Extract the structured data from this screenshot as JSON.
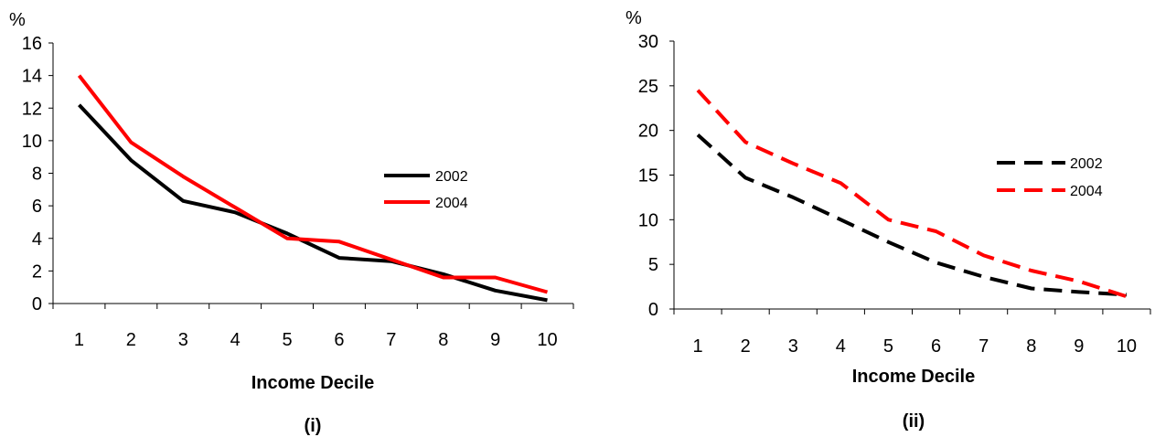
{
  "chart_data": [
    {
      "type": "line",
      "caption": "(i)",
      "ylabel": "%",
      "xlabel": "Income Decile",
      "categories": [
        "1",
        "2",
        "3",
        "4",
        "5",
        "6",
        "7",
        "8",
        "9",
        "10"
      ],
      "ylim": [
        0,
        16
      ],
      "yticks": [
        0,
        2,
        4,
        6,
        8,
        10,
        12,
        14,
        16
      ],
      "line_style": "solid",
      "legend_position": "right",
      "series": [
        {
          "name": "2002",
          "color": "#000000",
          "values": [
            12.2,
            8.8,
            6.3,
            5.6,
            4.3,
            2.8,
            2.6,
            1.8,
            0.8,
            0.2
          ]
        },
        {
          "name": "2004",
          "color": "#ff0000",
          "values": [
            14.0,
            9.9,
            7.8,
            5.9,
            4.0,
            3.8,
            2.7,
            1.6,
            1.6,
            0.7
          ]
        }
      ]
    },
    {
      "type": "line",
      "caption": "(ii)",
      "ylabel": "%",
      "xlabel": "Income Decile",
      "categories": [
        "1",
        "2",
        "3",
        "4",
        "5",
        "6",
        "7",
        "8",
        "9",
        "10"
      ],
      "ylim": [
        0,
        30
      ],
      "yticks": [
        0,
        5,
        10,
        15,
        20,
        25,
        30
      ],
      "line_style": "dashed",
      "legend_position": "right",
      "series": [
        {
          "name": "2002",
          "color": "#000000",
          "values": [
            19.5,
            14.7,
            12.5,
            10.0,
            7.5,
            5.2,
            3.6,
            2.3,
            1.9,
            1.6
          ]
        },
        {
          "name": "2004",
          "color": "#ff0000",
          "values": [
            24.5,
            18.7,
            16.3,
            14.1,
            10.0,
            8.7,
            6.0,
            4.3,
            3.1,
            1.4
          ]
        }
      ]
    }
  ]
}
